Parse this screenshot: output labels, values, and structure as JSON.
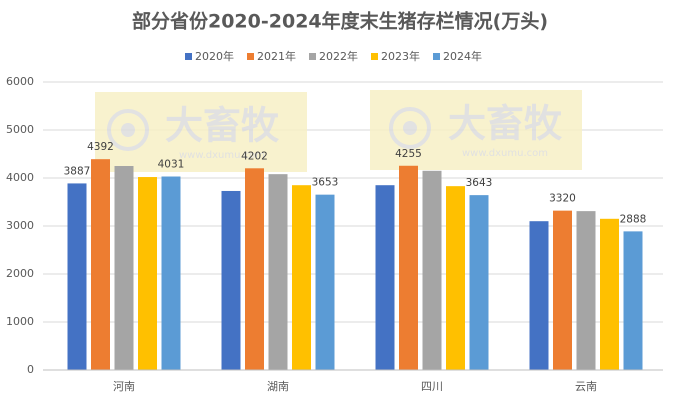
{
  "chart_data": {
    "type": "bar",
    "title": "部分省份2020-2024年度末生猪存栏情况(万头)",
    "categories": [
      "河南",
      "湖南",
      "四川",
      "云南"
    ],
    "series": [
      {
        "name": "2020年",
        "color": "#4472c4",
        "values": [
          3887,
          3730,
          3850,
          3100
        ],
        "show_value_labels": [
          true,
          false,
          false,
          false
        ]
      },
      {
        "name": "2021年",
        "color": "#ed7d31",
        "values": [
          4392,
          4202,
          4255,
          3320
        ],
        "show_value_labels": [
          true,
          true,
          true,
          true
        ]
      },
      {
        "name": "2022年",
        "color": "#a5a5a5",
        "values": [
          4250,
          4080,
          4150,
          3310
        ],
        "show_value_labels": [
          false,
          false,
          false,
          false
        ]
      },
      {
        "name": "2023年",
        "color": "#ffc000",
        "values": [
          4020,
          3850,
          3830,
          3150
        ],
        "show_value_labels": [
          false,
          false,
          false,
          false
        ]
      },
      {
        "name": "2024年",
        "color": "#5b9bd5",
        "values": [
          4031,
          3653,
          3643,
          2888
        ],
        "show_value_labels": [
          true,
          true,
          true,
          true
        ]
      }
    ],
    "ylim": [
      0,
      6000
    ],
    "yticks": [
      0,
      1000,
      2000,
      3000,
      4000,
      5000,
      6000
    ],
    "grid": true,
    "legend": "top",
    "watermark": {
      "brand": "大畜牧",
      "url": "www.dxumu.com"
    }
  }
}
